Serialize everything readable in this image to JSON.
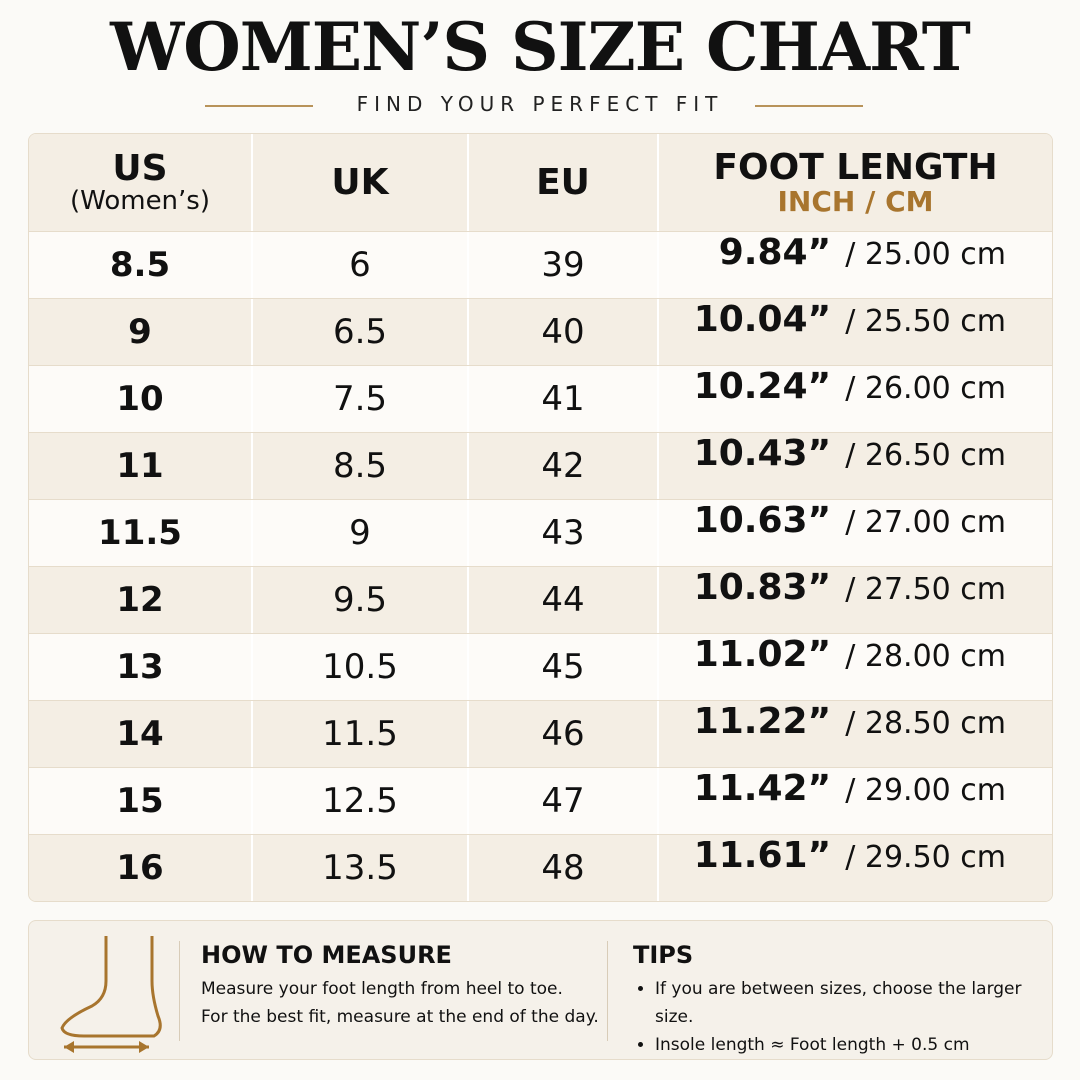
{
  "header": {
    "title": "WOMEN’S SIZE CHART",
    "subtitle": "FIND YOUR PERFECT FIT"
  },
  "table": {
    "columns": [
      {
        "title": "US",
        "subtitle": "(Women’s)"
      },
      {
        "title": "UK"
      },
      {
        "title": "EU"
      },
      {
        "title": "FOOT LENGTH",
        "subtitle": "INCH / CM"
      }
    ],
    "rows": [
      [
        "8.5",
        "6",
        "39",
        "9.84”",
        "/ 25.00 cm"
      ],
      [
        "9",
        "6.5",
        "40",
        "10.04”",
        "/ 25.50 cm"
      ],
      [
        "10",
        "7.5",
        "41",
        "10.24”",
        "/ 26.00 cm"
      ],
      [
        "11",
        "8.5",
        "42",
        "10.43”",
        "/ 26.50 cm"
      ],
      [
        "11.5",
        "9",
        "43",
        "10.63”",
        "/ 27.00 cm"
      ],
      [
        "12",
        "9.5",
        "44",
        "10.83”",
        "/ 27.50 cm"
      ],
      [
        "13",
        "10.5",
        "45",
        "11.02”",
        "/ 28.00 cm"
      ],
      [
        "14",
        "11.5",
        "46",
        "11.22”",
        "/ 28.50 cm"
      ],
      [
        "15",
        "12.5",
        "47",
        "11.42”",
        "/ 29.00 cm"
      ],
      [
        "16",
        "13.5",
        "48",
        "11.61”",
        "/ 29.50 cm"
      ]
    ]
  },
  "how_to_measure": {
    "title": "HOW TO MEASURE",
    "lines": [
      "Measure your foot length from heel to toe.",
      "For the best fit, measure at the end of the day."
    ]
  },
  "tips": {
    "title": "TIPS",
    "items": [
      "If you are between sizes, choose the larger size.",
      "Insole length ≈ Foot length + 0.5 cm"
    ]
  }
}
